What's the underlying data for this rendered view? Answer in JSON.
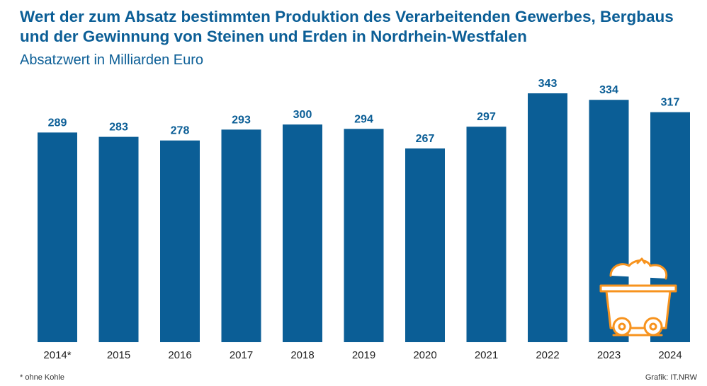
{
  "header": {
    "title": "Wert der zum Absatz bestimmten Produktion des Verarbeitenden Gewerbes, Bergbaus und der Gewinnung von Steinen und Erden in Nordrhein-Westfalen",
    "subtitle": "Absatzwert in Milliarden Euro"
  },
  "chart_data": {
    "type": "bar",
    "title": "Wert der zum Absatz bestimmten Produktion des Verarbeitenden Gewerbes, Bergbaus und der Gewinnung von Steinen und Erden in Nordrhein-Westfalen",
    "subtitle": "Absatzwert in Milliarden Euro",
    "categories": [
      "2014*",
      "2015",
      "2016",
      "2017",
      "2018",
      "2019",
      "2020",
      "2021",
      "2022",
      "2023",
      "2024"
    ],
    "values": [
      289,
      283,
      278,
      293,
      300,
      294,
      267,
      297,
      343,
      334,
      317
    ],
    "xlabel": "",
    "ylabel": "",
    "ylim": [
      0,
      343
    ],
    "grid": false,
    "bar_color": "#0b5e96",
    "icon_color": "#f7931e",
    "icon": "mine-cart-icon"
  },
  "footer": {
    "footnote": "* ohne Kohle",
    "source": "Grafik: IT.NRW"
  }
}
